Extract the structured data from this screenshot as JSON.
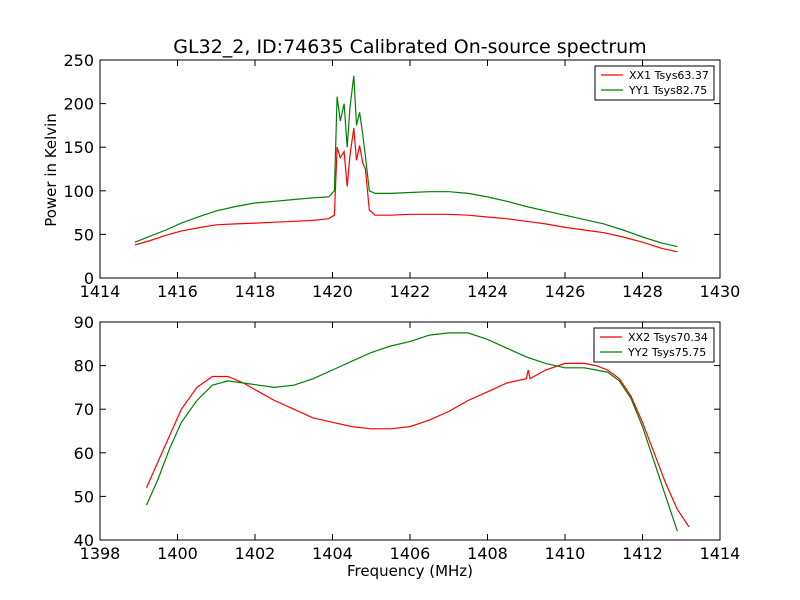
{
  "chart_data": [
    {
      "type": "line",
      "title": "GL32_2, ID:74635 Calibrated On-source spectrum",
      "xlabel": "",
      "ylabel": "Power in Kelvin",
      "xlim": [
        1414,
        1430
      ],
      "ylim": [
        0,
        250
      ],
      "xticks": [
        "1414",
        "1416",
        "1418",
        "1420",
        "1422",
        "1424",
        "1426",
        "1428",
        "1430"
      ],
      "yticks": [
        "0",
        "50",
        "100",
        "150",
        "200",
        "250"
      ],
      "xtick_values": [
        1414,
        1416,
        1418,
        1420,
        1422,
        1424,
        1426,
        1428,
        1430
      ],
      "ytick_values": [
        0,
        50,
        100,
        150,
        200,
        250
      ],
      "grid": false,
      "legend": "top-right",
      "series": [
        {
          "name": "XX1 Tsys63.37",
          "color": "#ff0000",
          "x": [
            1414.9,
            1415.3,
            1415.7,
            1416.1,
            1416.6,
            1417.0,
            1417.5,
            1418.0,
            1418.5,
            1419.0,
            1419.5,
            1419.9,
            1420.05,
            1420.12,
            1420.2,
            1420.3,
            1420.38,
            1420.45,
            1420.55,
            1420.62,
            1420.7,
            1420.78,
            1420.85,
            1420.95,
            1421.1,
            1421.5,
            1422.0,
            1422.5,
            1423.0,
            1423.5,
            1424.0,
            1424.5,
            1425.0,
            1425.5,
            1426.0,
            1426.5,
            1427.0,
            1427.5,
            1428.0,
            1428.5,
            1428.9
          ],
          "values": [
            38,
            43,
            49,
            54,
            58,
            61,
            62,
            63,
            64,
            65,
            66,
            68,
            72,
            150,
            138,
            145,
            105,
            140,
            172,
            135,
            152,
            132,
            125,
            78,
            72,
            72,
            73,
            73,
            73,
            72,
            70,
            68,
            65,
            62,
            58,
            55,
            52,
            47,
            41,
            34,
            30
          ]
        },
        {
          "name": "YY1 Tsys82.75",
          "color": "#008000",
          "x": [
            1414.9,
            1415.3,
            1415.7,
            1416.1,
            1416.6,
            1417.0,
            1417.5,
            1418.0,
            1418.5,
            1419.0,
            1419.5,
            1419.9,
            1420.05,
            1420.12,
            1420.2,
            1420.3,
            1420.38,
            1420.45,
            1420.55,
            1420.62,
            1420.7,
            1420.78,
            1420.85,
            1420.95,
            1421.1,
            1421.5,
            1422.0,
            1422.5,
            1423.0,
            1423.5,
            1424.0,
            1424.5,
            1425.0,
            1425.5,
            1426.0,
            1426.5,
            1427.0,
            1427.5,
            1428.0,
            1428.5,
            1428.9
          ],
          "values": [
            41,
            48,
            55,
            63,
            71,
            77,
            82,
            86,
            88,
            90,
            92,
            93,
            100,
            208,
            180,
            200,
            150,
            195,
            232,
            175,
            190,
            165,
            140,
            100,
            97,
            97,
            98,
            99,
            99,
            97,
            93,
            88,
            82,
            77,
            72,
            67,
            62,
            55,
            47,
            40,
            36
          ]
        }
      ]
    },
    {
      "type": "line",
      "title": "",
      "xlabel": "Frequency (MHz)",
      "ylabel": "",
      "xlim": [
        1398,
        1414
      ],
      "ylim": [
        40,
        90
      ],
      "xticks": [
        "1398",
        "1400",
        "1402",
        "1404",
        "1406",
        "1408",
        "1410",
        "1412",
        "1414"
      ],
      "yticks": [
        "40",
        "50",
        "60",
        "70",
        "80",
        "90"
      ],
      "xtick_values": [
        1398,
        1400,
        1402,
        1404,
        1406,
        1408,
        1410,
        1412,
        1414
      ],
      "ytick_values": [
        40,
        50,
        60,
        70,
        80,
        90
      ],
      "grid": false,
      "legend": "top-right",
      "series": [
        {
          "name": "XX2 Tsys70.34",
          "color": "#ff0000",
          "x": [
            1399.2,
            1399.5,
            1399.8,
            1400.1,
            1400.5,
            1400.9,
            1401.3,
            1401.7,
            1402.1,
            1402.5,
            1403.0,
            1403.5,
            1404.0,
            1404.5,
            1405.0,
            1405.5,
            1406.0,
            1406.5,
            1407.0,
            1407.5,
            1408.0,
            1408.5,
            1409.0,
            1409.05,
            1409.1,
            1409.5,
            1410.0,
            1410.5,
            1410.8,
            1411.1,
            1411.4,
            1411.7,
            1412.0,
            1412.3,
            1412.6,
            1412.9,
            1413.2
          ],
          "values": [
            52,
            58,
            64,
            70,
            75,
            77.5,
            77.5,
            76,
            74,
            72,
            70,
            68,
            67,
            66,
            65.5,
            65.5,
            66,
            67.5,
            69.5,
            72,
            74,
            76,
            77,
            79,
            77,
            79,
            80.5,
            80.5,
            80,
            79,
            77,
            73,
            67,
            60,
            53,
            47,
            43
          ]
        },
        {
          "name": "YY2 Tsys75.75",
          "color": "#008000",
          "x": [
            1399.2,
            1399.5,
            1399.8,
            1400.1,
            1400.5,
            1400.9,
            1401.3,
            1401.7,
            1402.1,
            1402.5,
            1403.0,
            1403.5,
            1404.0,
            1404.5,
            1405.0,
            1405.5,
            1406.0,
            1406.5,
            1407.0,
            1407.5,
            1408.0,
            1408.5,
            1409.0,
            1409.5,
            1410.0,
            1410.5,
            1410.8,
            1411.1,
            1411.4,
            1411.7,
            1412.0,
            1412.3,
            1412.6,
            1412.9
          ],
          "values": [
            48,
            54,
            61,
            67,
            72,
            75.5,
            76.5,
            76,
            75.5,
            75,
            75.5,
            77,
            79,
            81,
            83,
            84.5,
            85.5,
            87,
            87.5,
            87.5,
            86,
            84,
            82,
            80.5,
            79.5,
            79.5,
            79,
            78.5,
            76.5,
            72.5,
            66,
            58,
            50,
            42
          ]
        }
      ]
    }
  ]
}
